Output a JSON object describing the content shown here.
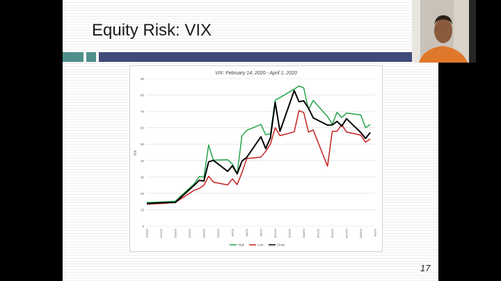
{
  "slide": {
    "title": "Equity Risk: VIX",
    "page_number": "17"
  },
  "chart_data": {
    "type": "line",
    "title": "VIX: February 14, 2020 - April 1, 2020",
    "ylabel": "VIX",
    "xlabel": "",
    "ylim": [
      0,
      90
    ],
    "yticks": [
      0,
      10,
      20,
      30,
      40,
      50,
      60,
      70,
      80,
      90
    ],
    "grid": true,
    "legend_position": "bottom",
    "x": [
      "2/14/20",
      "2/18/20",
      "2/19/20",
      "2/20/20",
      "2/21/20",
      "2/24/20",
      "2/25/20",
      "2/26/20",
      "2/27/20",
      "2/28/20",
      "3/2/20",
      "3/3/20",
      "3/4/20",
      "3/5/20",
      "3/6/20",
      "3/9/20",
      "3/10/20",
      "3/11/20",
      "3/12/20",
      "3/13/20",
      "3/16/20",
      "3/17/20",
      "3/18/20",
      "3/19/20",
      "3/20/20",
      "3/23/20",
      "3/24/20",
      "3/25/20",
      "3/26/20",
      "3/27/20",
      "3/30/20",
      "3/31/20",
      "4/1/20"
    ],
    "xtick_labels": [
      "2/14/20",
      "2/17/20",
      "2/20/20",
      "2/23/20",
      "2/26/20",
      "2/29/20",
      "3/3/20",
      "3/6/20",
      "3/9/20",
      "3/12/20",
      "3/15/20",
      "3/18/20",
      "3/21/20",
      "3/24/20",
      "3/27/20",
      "3/30/20",
      "4/2/20"
    ],
    "series": [
      {
        "name": "High",
        "color": "#22a34a",
        "values": [
          14.4,
          14.8,
          15.0,
          15.2,
          17.9,
          25.9,
          30.2,
          29.8,
          49.5,
          40.2,
          40.5,
          37.8,
          31.9,
          55.0,
          58.4,
          62.0,
          55.7,
          56.4,
          76.8,
          78.4,
          83.6,
          85.5,
          84.3,
          71.1,
          76.7,
          66.8,
          62.2,
          69.4,
          66.2,
          69.0,
          67.8,
          60.0,
          62.0
        ]
      },
      {
        "name": "Low",
        "color": "#c41e1e",
        "values": [
          13.4,
          13.9,
          14.2,
          14.4,
          16.3,
          21.9,
          22.9,
          24.9,
          30.4,
          26.8,
          25.1,
          28.8,
          25.3,
          32.5,
          41.2,
          42.1,
          45.6,
          50.1,
          60.0,
          55.2,
          57.5,
          70.5,
          69.3,
          57.4,
          58.6,
          36.5,
          57.8,
          57.9,
          61.9,
          57.4,
          55.5,
          51.2,
          53.1
        ]
      },
      {
        "name": "Close",
        "color": "#000000",
        "values": [
          13.7,
          14.4,
          14.4,
          14.4,
          17.1,
          25.0,
          27.9,
          27.5,
          39.2,
          40.1,
          33.4,
          36.8,
          31.9,
          39.6,
          41.9,
          54.5,
          47.3,
          53.9,
          75.5,
          57.8,
          82.7,
          75.9,
          76.4,
          72.0,
          66.0,
          61.6,
          61.7,
          63.9,
          61.0,
          65.5,
          57.1,
          53.5,
          57.1
        ]
      }
    ]
  }
}
